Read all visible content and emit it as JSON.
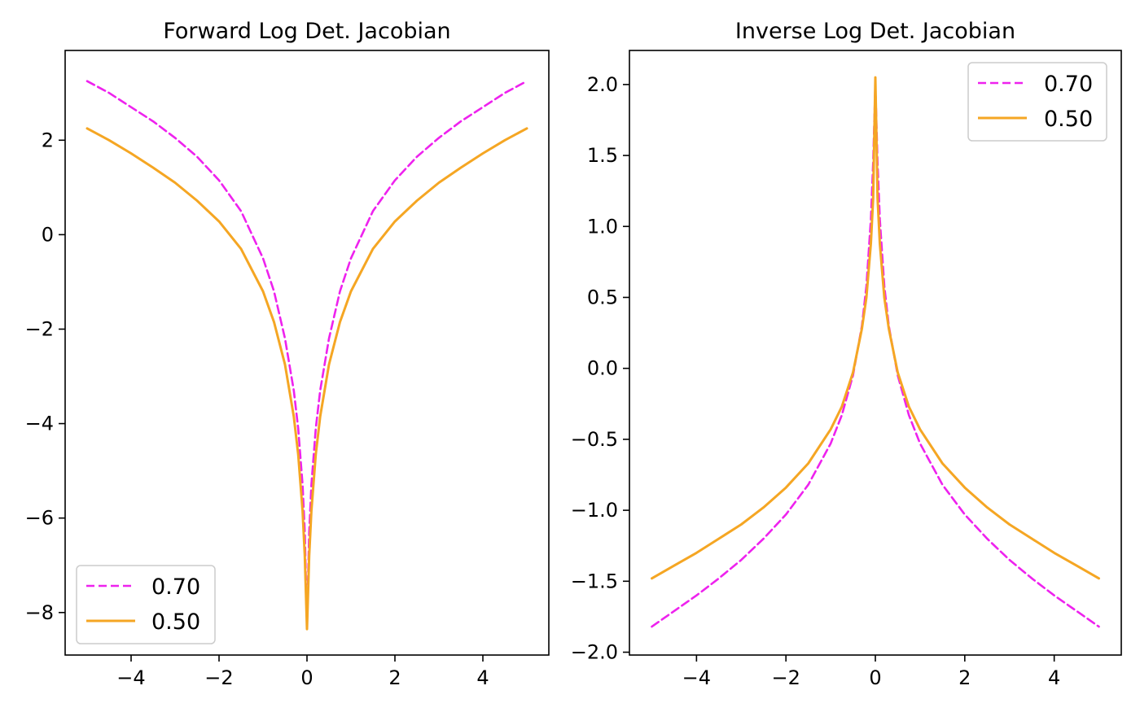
{
  "chart_data": [
    {
      "type": "line",
      "title": "Forward Log Det. Jacobian",
      "xlabel": "",
      "ylabel": "",
      "xlim": [
        -5.5,
        5.5
      ],
      "ylim": [
        -8.9,
        3.9
      ],
      "xticks": [
        -4,
        -2,
        0,
        2,
        4
      ],
      "yticks": [
        -8,
        -6,
        -4,
        -2,
        0,
        2
      ],
      "tick_labels_x": [
        "−4",
        "−2",
        "0",
        "2",
        "4"
      ],
      "tick_labels_y": [
        "−8",
        "−6",
        "−4",
        "−2",
        "0",
        "2"
      ],
      "grid": false,
      "legend": "lower-left",
      "series": [
        {
          "name": "0.70",
          "color": "#ee22ee",
          "style": "dashed",
          "x": [
            -5,
            -4.5,
            -4,
            -3.5,
            -3,
            -2.5,
            -2,
            -1.5,
            -1,
            -0.75,
            -0.5,
            -0.3,
            -0.2,
            -0.1,
            -0.05,
            0,
            0.05,
            0.1,
            0.2,
            0.3,
            0.5,
            0.75,
            1,
            1.5,
            2,
            2.5,
            3,
            3.5,
            4,
            4.5,
            5
          ],
          "y": [
            3.25,
            3.0,
            2.7,
            2.4,
            2.05,
            1.65,
            1.15,
            0.5,
            -0.5,
            -1.2,
            -2.2,
            -3.3,
            -4.1,
            -5.3,
            -6.3,
            -8.3,
            -6.3,
            -5.3,
            -4.1,
            -3.3,
            -2.2,
            -1.2,
            -0.5,
            0.5,
            1.15,
            1.65,
            2.05,
            2.4,
            2.7,
            3.0,
            3.25
          ]
        },
        {
          "name": "0.50",
          "color": "#f5a623",
          "style": "solid",
          "x": [
            -5,
            -4.5,
            -4,
            -3.5,
            -3,
            -2.5,
            -2,
            -1.5,
            -1,
            -0.75,
            -0.5,
            -0.3,
            -0.2,
            -0.1,
            -0.05,
            0,
            0.05,
            0.1,
            0.2,
            0.3,
            0.5,
            0.75,
            1,
            1.5,
            2,
            2.5,
            3,
            3.5,
            4,
            4.5,
            5
          ],
          "y": [
            2.25,
            2.0,
            1.72,
            1.42,
            1.1,
            0.72,
            0.28,
            -0.3,
            -1.2,
            -1.85,
            -2.75,
            -3.85,
            -4.65,
            -5.85,
            -6.8,
            -8.35,
            -6.8,
            -5.85,
            -4.65,
            -3.85,
            -2.75,
            -1.85,
            -1.2,
            -0.3,
            0.28,
            0.72,
            1.1,
            1.42,
            1.72,
            2.0,
            2.25
          ]
        }
      ]
    },
    {
      "type": "line",
      "title": "Inverse Log Det. Jacobian",
      "xlabel": "",
      "ylabel": "",
      "xlim": [
        -5.5,
        5.5
      ],
      "ylim": [
        -2.02,
        2.24
      ],
      "xticks": [
        -4,
        -2,
        0,
        2,
        4
      ],
      "yticks": [
        -2.0,
        -1.5,
        -1.0,
        -0.5,
        0.0,
        0.5,
        1.0,
        1.5,
        2.0
      ],
      "tick_labels_x": [
        "−4",
        "−2",
        "0",
        "2",
        "4"
      ],
      "tick_labels_y": [
        "−2.0",
        "−1.5",
        "−1.0",
        "−0.5",
        "0.0",
        "0.5",
        "1.0",
        "1.5",
        "2.0"
      ],
      "grid": false,
      "legend": "upper-right",
      "series": [
        {
          "name": "0.70",
          "color": "#ee22ee",
          "style": "dashed",
          "x": [
            -5,
            -4.5,
            -4,
            -3.5,
            -3,
            -2.5,
            -2,
            -1.5,
            -1,
            -0.75,
            -0.5,
            -0.3,
            -0.2,
            -0.1,
            -0.05,
            0,
            0.05,
            0.1,
            0.2,
            0.3,
            0.5,
            0.75,
            1,
            1.5,
            2,
            2.5,
            3,
            3.5,
            4,
            4.5,
            5
          ],
          "y": [
            -1.82,
            -1.71,
            -1.6,
            -1.48,
            -1.35,
            -1.2,
            -1.03,
            -0.82,
            -0.53,
            -0.33,
            -0.05,
            0.3,
            0.58,
            1.05,
            1.45,
            2.0,
            1.45,
            1.05,
            0.58,
            0.3,
            -0.05,
            -0.33,
            -0.53,
            -0.82,
            -1.03,
            -1.2,
            -1.35,
            -1.48,
            -1.6,
            -1.71,
            -1.82
          ]
        },
        {
          "name": "0.50",
          "color": "#f5a623",
          "style": "solid",
          "x": [
            -5,
            -4.5,
            -4,
            -3.5,
            -3,
            -2.5,
            -2,
            -1.5,
            -1,
            -0.75,
            -0.5,
            -0.3,
            -0.2,
            -0.1,
            -0.05,
            0,
            0.05,
            0.1,
            0.2,
            0.3,
            0.5,
            0.75,
            1,
            1.5,
            2,
            2.5,
            3,
            3.5,
            4,
            4.5,
            5
          ],
          "y": [
            -1.48,
            -1.39,
            -1.3,
            -1.2,
            -1.1,
            -0.98,
            -0.84,
            -0.67,
            -0.43,
            -0.27,
            -0.03,
            0.28,
            0.5,
            0.88,
            1.2,
            2.05,
            1.2,
            0.88,
            0.5,
            0.28,
            -0.03,
            -0.27,
            -0.43,
            -0.67,
            -0.84,
            -0.98,
            -1.1,
            -1.2,
            -1.3,
            -1.39,
            -1.48
          ]
        }
      ]
    }
  ]
}
